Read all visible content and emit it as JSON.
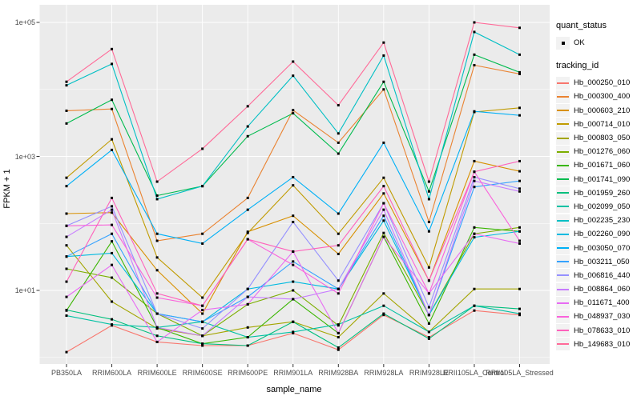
{
  "figure": {
    "background": "#FFFFFF",
    "panel_bg": "#EBEBEB",
    "grid_color": "#FFFFFF",
    "point_color": "#000000",
    "tick_color": "#333333",
    "tick_label_color": "#4D4D4D"
  },
  "legend": {
    "quant_status_title": "quant_status",
    "quant_status_ok_label": "OK",
    "quant_status_key_icon": "black-square-point-icon",
    "tracking_title": "tracking_id"
  },
  "chart_data": {
    "type": "line",
    "title": "",
    "xlabel": "sample_name",
    "ylabel": "FPKM + 1",
    "y_scale": "log10",
    "grid": true,
    "legend_position": "right",
    "marker": "square",
    "ylim": [
      0.8,
      180000
    ],
    "y_ticks": [
      {
        "label": "1e+05",
        "value": 100000
      },
      {
        "label": "1e+03",
        "value": 1000
      },
      {
        "label": "1e+01",
        "value": 10
      }
    ],
    "y_minor_values": [
      1,
      100,
      10000
    ],
    "categories": [
      "PB350LA",
      "RRIM600LA",
      "RRIM600LE",
      "RRIM600SE",
      "RRIM600PE",
      "RRIM901LA",
      "RRIM928BA",
      "RRIM928LA",
      "RRIM928LE",
      "RRII105LA_Control",
      "RRII105LA_Stressed"
    ],
    "series": [
      {
        "name": "Hb_000250_010",
        "color": "#F8766D",
        "values": [
          1.2,
          3.0,
          1.7,
          1.5,
          1.5,
          2.3,
          1.3,
          4.3,
          2.0,
          5.0,
          4.3
        ]
      },
      {
        "name": "Hb_000300_400",
        "color": "#EA8331",
        "values": [
          4800,
          5100,
          55,
          70,
          240,
          4900,
          1600,
          10000,
          105,
          23000,
          17000
        ]
      },
      {
        "name": "Hb_000603_210",
        "color": "#D89000",
        "values": [
          140,
          145,
          20,
          4.5,
          75,
          130,
          35,
          280,
          14,
          850,
          600
        ]
      },
      {
        "name": "Hb_000714_010",
        "color": "#C09B00",
        "values": [
          480,
          1800,
          31,
          7.8,
          72,
          370,
          70,
          480,
          22,
          4600,
          5300
        ]
      },
      {
        "name": "Hb_000803_050",
        "color": "#A3A500",
        "values": [
          47,
          6.8,
          2.7,
          2.1,
          2.8,
          3.4,
          2.0,
          9,
          2.4,
          10.5,
          10.5
        ]
      },
      {
        "name": "Hb_001276_060",
        "color": "#7CAE00",
        "values": [
          21,
          15.5,
          4.5,
          2.1,
          6.2,
          10,
          3.0,
          72,
          4.3,
          70,
          87
        ]
      },
      {
        "name": "Hb_001671_060",
        "color": "#39B600",
        "values": [
          5.0,
          54,
          2.8,
          1.6,
          2.0,
          7.4,
          2.3,
          63,
          3.2,
          87,
          76
        ]
      },
      {
        "name": "Hb_001741_090",
        "color": "#00BB4E",
        "values": [
          3100,
          7000,
          260,
          360,
          2000,
          4400,
          1100,
          13000,
          300,
          33000,
          18000
        ]
      },
      {
        "name": "Hb_001959_260",
        "color": "#00BF7D",
        "values": [
          5.1,
          3.7,
          2.1,
          1.6,
          1.5,
          3.4,
          1.4,
          4.5,
          1.9,
          5.9,
          5.3
        ]
      },
      {
        "name": "Hb_002099_050",
        "color": "#00C1A3",
        "values": [
          4.2,
          3.1,
          2.8,
          3.4,
          2.0,
          2.4,
          3.1,
          5.9,
          2.4,
          5.9,
          4.5
        ]
      },
      {
        "name": "Hb_002235_230",
        "color": "#00BFC4",
        "values": [
          11500,
          24000,
          230,
          360,
          2800,
          16000,
          2200,
          32000,
          230,
          72000,
          33000
        ]
      },
      {
        "name": "Hb_002260_090",
        "color": "#00BAE0",
        "values": [
          32,
          36,
          4.5,
          3.4,
          10.5,
          13.5,
          10.5,
          110,
          4.3,
          62,
          76
        ]
      },
      {
        "name": "Hb_003050_070",
        "color": "#00B0F6",
        "values": [
          360,
          1250,
          70,
          50,
          160,
          490,
          140,
          1600,
          76,
          4700,
          4100
        ]
      },
      {
        "name": "Hb_003211_050",
        "color": "#35A2FF",
        "values": [
          32,
          70,
          4.5,
          3.4,
          8.0,
          27,
          10.5,
          130,
          4.3,
          350,
          430
        ]
      },
      {
        "name": "Hb_006816_440",
        "color": "#9590FF",
        "values": [
          92,
          180,
          4.5,
          2.7,
          10.5,
          105,
          14,
          200,
          5.6,
          490,
          330
        ]
      },
      {
        "name": "Hb_008864_060",
        "color": "#C77CFF",
        "values": [
          63,
          160,
          2.8,
          2.1,
          8.0,
          7.4,
          10.5,
          160,
          4.3,
          430,
          300
        ]
      },
      {
        "name": "Hb_011671_400",
        "color": "#E76BF3",
        "values": [
          8.0,
          24,
          1.7,
          5.1,
          6.2,
          38,
          2.3,
          63,
          9.0,
          70,
          50
        ]
      },
      {
        "name": "Hb_048937_030",
        "color": "#FA62DB",
        "values": [
          92,
          95,
          7.8,
          5.9,
          58,
          24,
          9.0,
          200,
          9.0,
          590,
          55
        ]
      },
      {
        "name": "Hb_078633_010",
        "color": "#FF62BC",
        "values": [
          13.5,
          240,
          9.0,
          5.9,
          58,
          38,
          47,
          360,
          14,
          590,
          850
        ]
      },
      {
        "name": "Hb_149683_010",
        "color": "#FF6A98",
        "values": [
          13000,
          40000,
          420,
          1300,
          5600,
          26000,
          5800,
          50000,
          420,
          100000,
          83000
        ]
      }
    ]
  }
}
